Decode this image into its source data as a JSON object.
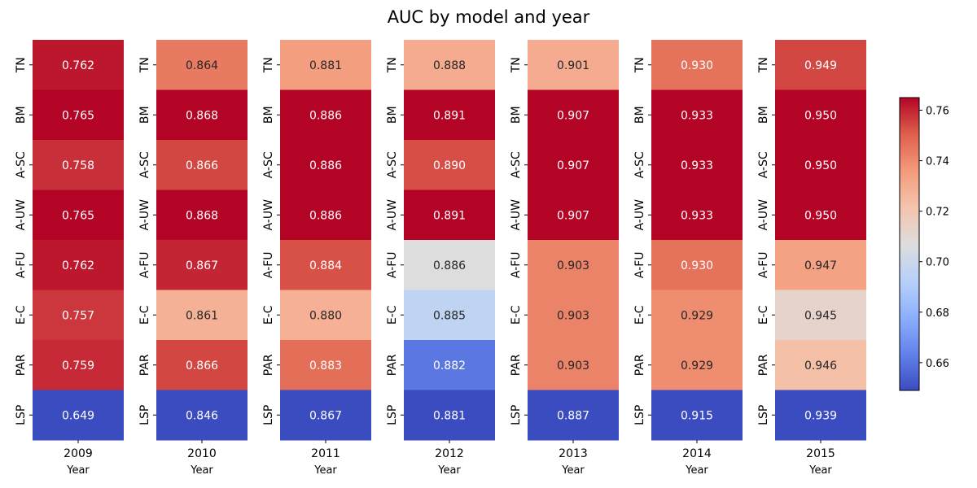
{
  "chart_data": {
    "type": "heatmap",
    "title": "AUC by model and year",
    "rows": [
      "TN",
      "BM",
      "A-SC",
      "A-UW",
      "A-FU",
      "E-C",
      "PAR",
      "LSP"
    ],
    "panels": [
      {
        "year": "2009",
        "xlabel": "Year",
        "values": [
          0.762,
          0.765,
          0.758,
          0.765,
          0.762,
          0.757,
          0.759,
          0.649
        ]
      },
      {
        "year": "2010",
        "xlabel": "Year",
        "values": [
          0.864,
          0.868,
          0.866,
          0.868,
          0.867,
          0.861,
          0.866,
          0.846
        ]
      },
      {
        "year": "2011",
        "xlabel": "Year",
        "values": [
          0.881,
          0.886,
          0.886,
          0.886,
          0.884,
          0.88,
          0.883,
          0.867
        ]
      },
      {
        "year": "2012",
        "xlabel": "Year",
        "values": [
          0.888,
          0.891,
          0.89,
          0.891,
          0.886,
          0.885,
          0.882,
          0.881
        ]
      },
      {
        "year": "2013",
        "xlabel": "Year",
        "values": [
          0.901,
          0.907,
          0.907,
          0.907,
          0.903,
          0.903,
          0.903,
          0.887
        ]
      },
      {
        "year": "2014",
        "xlabel": "Year",
        "values": [
          0.93,
          0.933,
          0.933,
          0.933,
          0.93,
          0.929,
          0.929,
          0.915
        ]
      },
      {
        "year": "2015",
        "xlabel": "Year",
        "values": [
          0.949,
          0.95,
          0.95,
          0.95,
          0.947,
          0.945,
          0.946,
          0.939
        ]
      }
    ],
    "colormap": "coolwarm",
    "colorbar": {
      "range": [
        0.649,
        0.765
      ],
      "ticks": [
        "0.66",
        "0.68",
        "0.70",
        "0.72",
        "0.74",
        "0.76"
      ],
      "tick_values": [
        0.66,
        0.68,
        0.7,
        0.72,
        0.74,
        0.76
      ],
      "placement": "right"
    },
    "colors": {
      "low": "#3b4cc0",
      "mid": "#dddddd",
      "high": "#b40426"
    }
  }
}
